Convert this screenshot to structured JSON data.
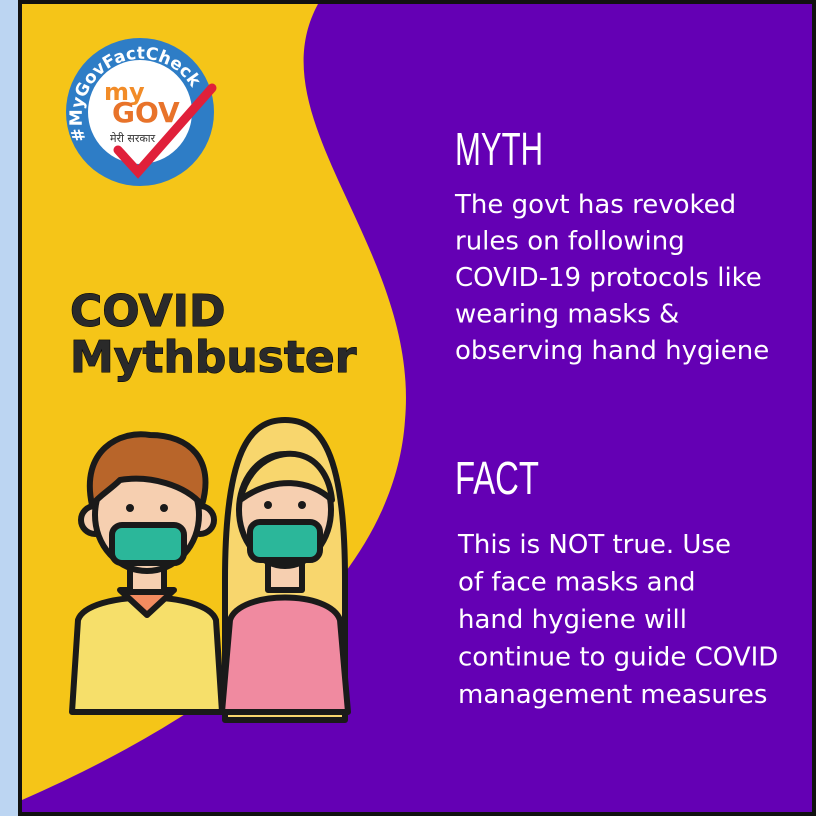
{
  "logo": {
    "ring_text": "#MyGovFactCheck",
    "my": "my",
    "gov": "GOV",
    "tagline": "मेरी सरकार"
  },
  "headline": {
    "line1": "COVID",
    "line2": "Mythbuster"
  },
  "myth": {
    "heading": "MYTH",
    "lines": [
      "The govt has revoked",
      "rules on following",
      "COVID-19 protocols like",
      "wearing masks &",
      "observing hand hygiene"
    ]
  },
  "fact": {
    "heading": "FACT",
    "lines": [
      "This is NOT true. Use",
      "of face masks and",
      "hand hygiene will",
      "continue to guide COVID",
      "management measures"
    ]
  }
}
